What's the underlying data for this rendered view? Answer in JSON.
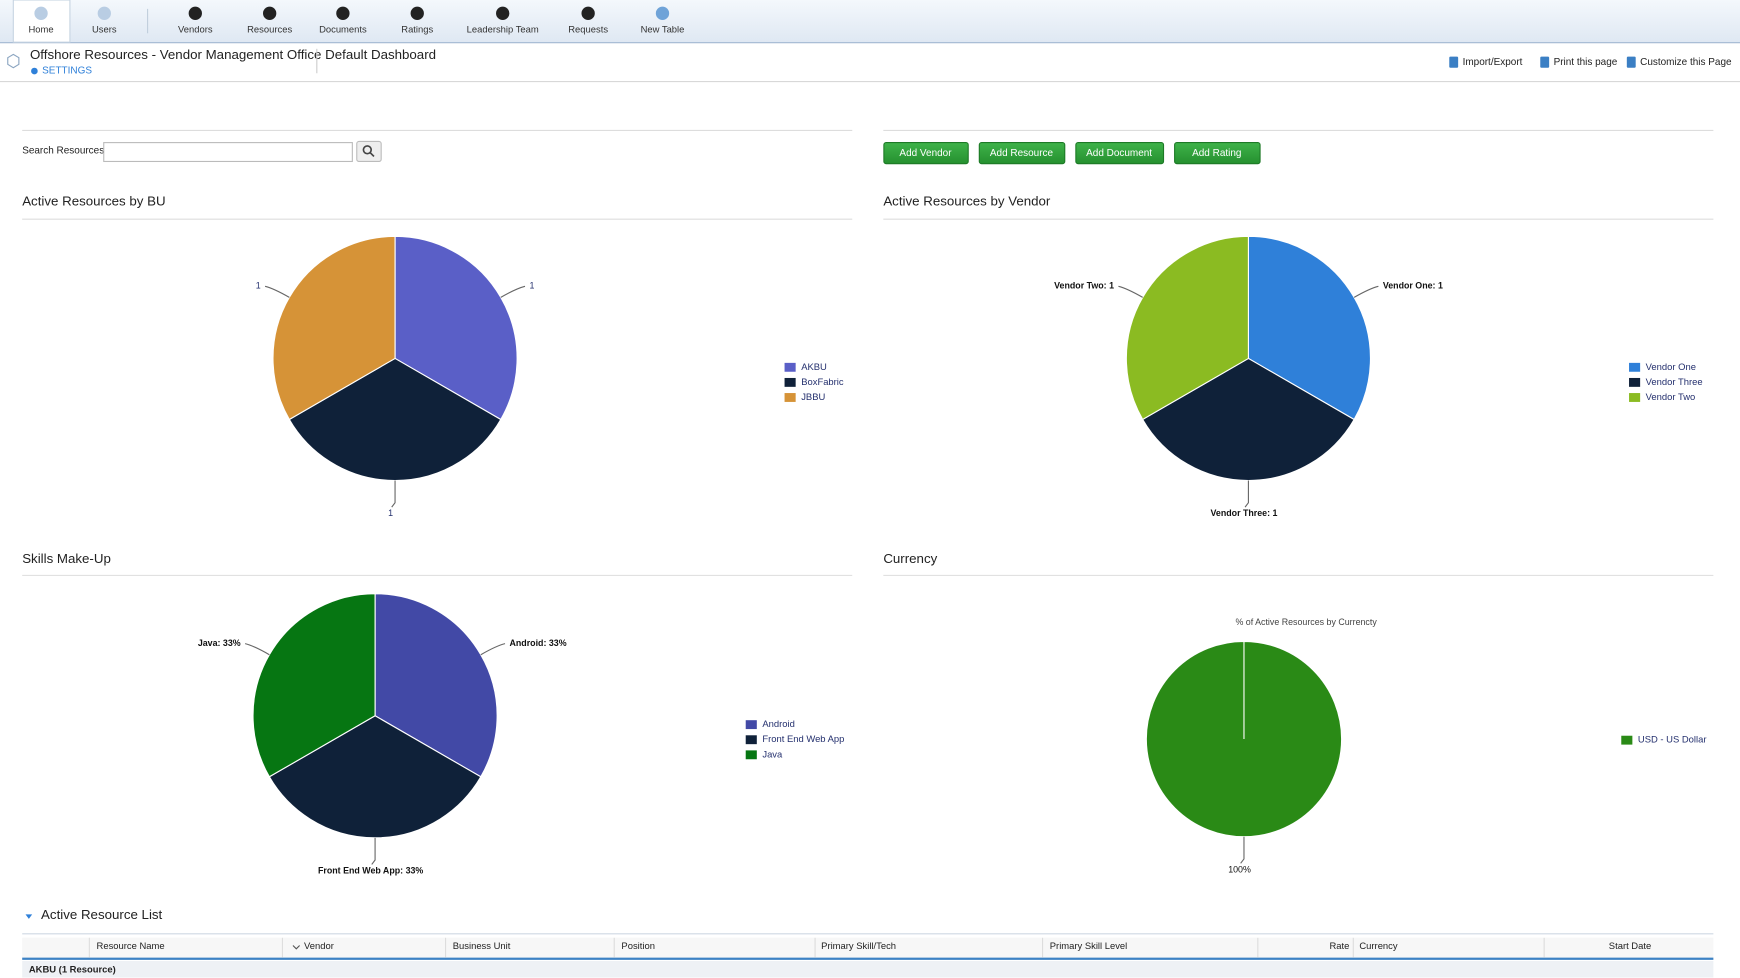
{
  "nav": {
    "items": [
      "Home",
      "Users",
      "Vendors",
      "Resources",
      "Documents",
      "Ratings",
      "Leadership Team",
      "Requests",
      "New Table"
    ]
  },
  "header": {
    "app_title": "Offshore Resources - Vendor Management Office",
    "settings": "SETTINGS",
    "page_title": "Default Dashboard",
    "actions": [
      "Import/Export",
      "Print this page",
      "Customize this Page"
    ]
  },
  "search": {
    "label": "Search Resources"
  },
  "buttons": [
    "Add Vendor",
    "Add Resource",
    "Add Document",
    "Add Rating"
  ],
  "charts": [
    {
      "type": "pie",
      "title": "Active Resources by BU",
      "categories": [
        "AKBU",
        "BoxFabric",
        "JBBU"
      ],
      "values": [
        1,
        1,
        1
      ],
      "colors": [
        "#5a5fc7",
        "#0f2139",
        "#d69337"
      ],
      "legend": "right"
    },
    {
      "type": "pie",
      "title": "Active Resources by Vendor",
      "categories": [
        "Vendor One",
        "Vendor Three",
        "Vendor Two"
      ],
      "values": [
        1,
        1,
        1
      ],
      "value_labels": [
        "Vendor One: 1",
        "Vendor Three: 1",
        "Vendor Two: 1"
      ],
      "colors": [
        "#2f80d9",
        "#0f2139",
        "#8bbb22"
      ],
      "legend": "right"
    },
    {
      "type": "pie",
      "title": "Skills Make-Up",
      "categories": [
        "Android",
        "Front End Web App",
        "Java"
      ],
      "values": [
        33,
        33,
        33
      ],
      "value_labels": [
        "Android: 33%",
        "Front End Web App: 33%",
        "Java: 33%"
      ],
      "colors": [
        "#4249a6",
        "#0f2139",
        "#067612"
      ],
      "legend": "right"
    },
    {
      "type": "pie",
      "title": "Currency",
      "subtitle": "% of Active Resources by Currencty",
      "categories": [
        "USD - US Dollar"
      ],
      "values": [
        100
      ],
      "value_labels": [
        "100%"
      ],
      "colors": [
        "#2a8a16"
      ],
      "legend": "right"
    }
  ],
  "table": {
    "title": "Active Resource List",
    "columns": [
      "Resource Name",
      "Vendor",
      "Business Unit",
      "Position",
      "Primary Skill/Tech",
      "Primary Skill Level",
      "Rate",
      "Currency",
      "Start Date"
    ],
    "groups": [
      "AKBU (1 Resource)"
    ]
  }
}
